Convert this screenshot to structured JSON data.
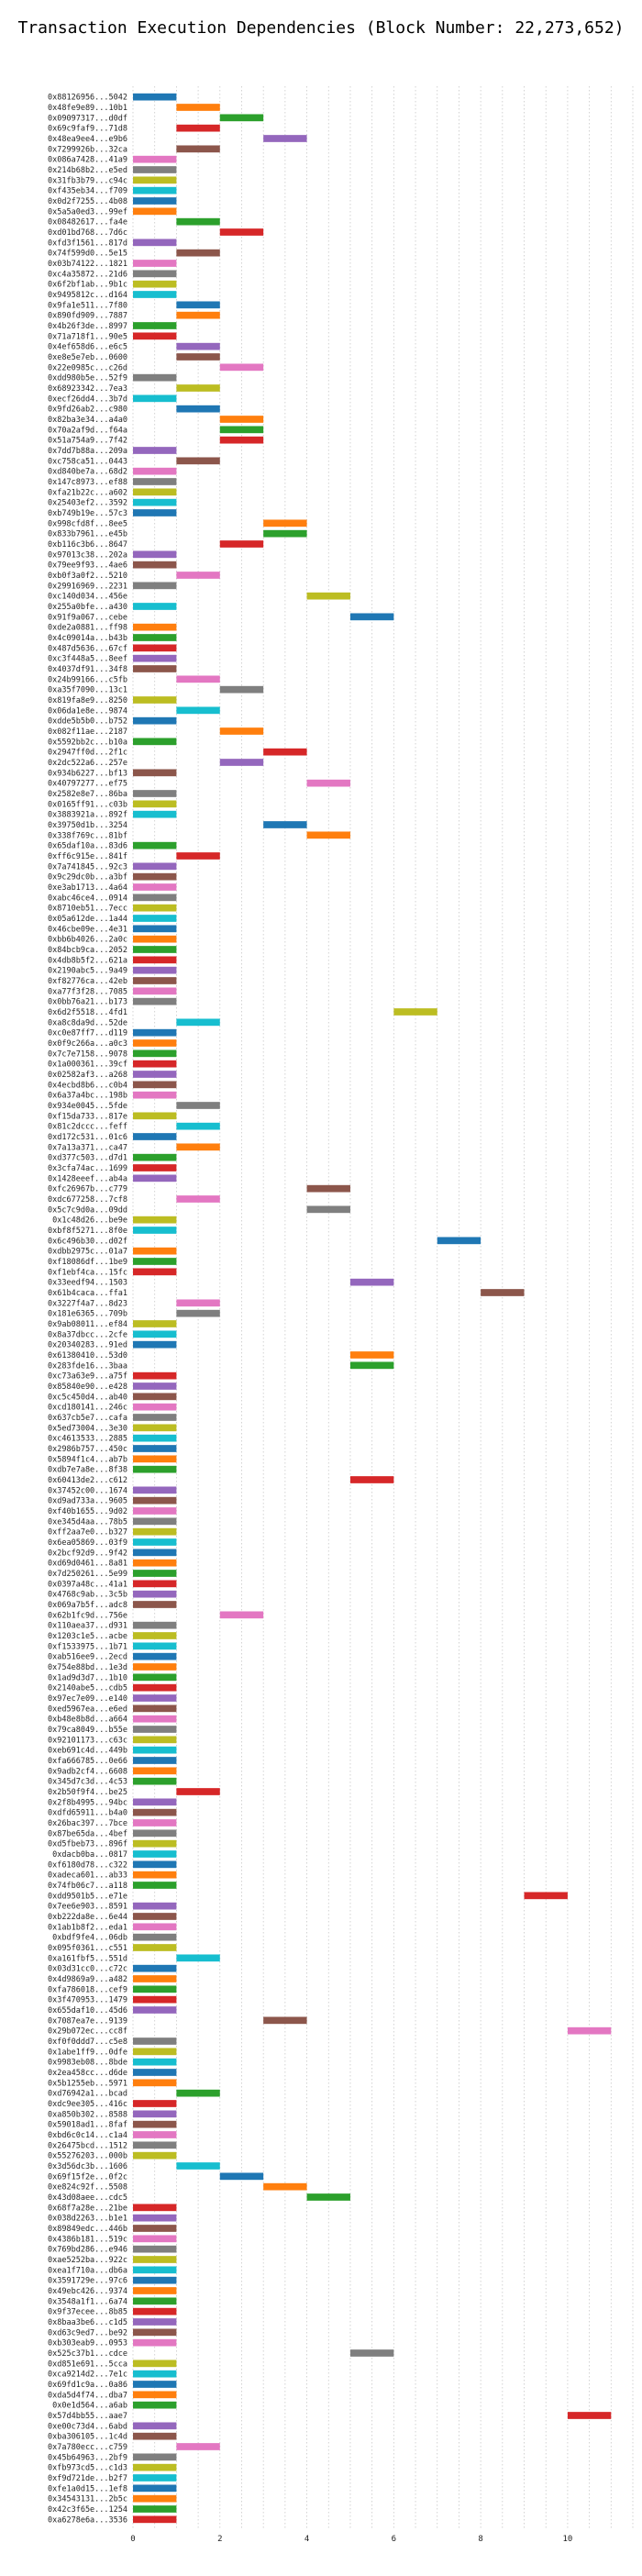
{
  "chart_data": {
    "type": "bar",
    "orientation": "horizontal-gantt",
    "title": "Transaction Execution Dependencies (Block Number: 22,273,652)",
    "xlabel": "",
    "ylabel": "",
    "xlim": [
      0,
      11.5
    ],
    "x_ticks": [
      0,
      2,
      4,
      6,
      8,
      10
    ],
    "grid": true,
    "colors": [
      "#1f77b4",
      "#ff7f0e",
      "#2ca02c",
      "#d62728",
      "#9467bd",
      "#8c564b",
      "#e377c2",
      "#7f7f7f",
      "#bcbd22",
      "#17becf"
    ],
    "rows": [
      {
        "label": "0x88126956...5042",
        "start": 0
      },
      {
        "label": "0x48fe9e89...10b1",
        "start": 1
      },
      {
        "label": "0x09097317...d0df",
        "start": 2
      },
      {
        "label": "0x69c9faf9...71d8",
        "start": 1
      },
      {
        "label": "0x48ea9ee4...e9b6",
        "start": 3
      },
      {
        "label": "0x7299926b...32ca",
        "start": 1
      },
      {
        "label": "0x086a7428...41a9",
        "start": 0
      },
      {
        "label": "0x214b68b2...e5ed",
        "start": 0
      },
      {
        "label": "0x31fb3b79...c94c",
        "start": 0
      },
      {
        "label": "0xf435eb34...f709",
        "start": 0
      },
      {
        "label": "0x0d2f7255...4b08",
        "start": 0
      },
      {
        "label": "0x5a5a0ed3...99ef",
        "start": 0
      },
      {
        "label": "0x08482617...fa4e",
        "start": 1
      },
      {
        "label": "0xd01bd768...7d6c",
        "start": 2
      },
      {
        "label": "0xfd3f1561...817d",
        "start": 0
      },
      {
        "label": "0x74f599d0...5e15",
        "start": 1
      },
      {
        "label": "0x03b74122...1821",
        "start": 0
      },
      {
        "label": "0xc4a35872...21d6",
        "start": 0
      },
      {
        "label": "0x6f2bf1ab...9b1c",
        "start": 0
      },
      {
        "label": "0x9495812c...d164",
        "start": 0
      },
      {
        "label": "0x9fa1e511...7f80",
        "start": 1
      },
      {
        "label": "0x890fd909...7887",
        "start": 1
      },
      {
        "label": "0x4b26f3de...8997",
        "start": 0
      },
      {
        "label": "0x71a718f1...90e5",
        "start": 0
      },
      {
        "label": "0x4ef658d6...e6c5",
        "start": 1
      },
      {
        "label": "0xe8e5e7eb...0600",
        "start": 1
      },
      {
        "label": "0x22e0985c...c26d",
        "start": 2
      },
      {
        "label": "0xdd980b5e...52f9",
        "start": 0
      },
      {
        "label": "0x68923342...7ea3",
        "start": 1
      },
      {
        "label": "0xecf26dd4...3b7d",
        "start": 0
      },
      {
        "label": "0x9fd26ab2...c980",
        "start": 1
      },
      {
        "label": "0x82ba3e34...a4a0",
        "start": 2
      },
      {
        "label": "0x70a2af9d...f64a",
        "start": 2
      },
      {
        "label": "0x51a754a9...7f42",
        "start": 2
      },
      {
        "label": "0x7dd7b88a...209a",
        "start": 0
      },
      {
        "label": "0xc758ca51...0443",
        "start": 1
      },
      {
        "label": "0xd840be7a...68d2",
        "start": 0
      },
      {
        "label": "0x147c8973...ef88",
        "start": 0
      },
      {
        "label": "0xfa21b22c...a602",
        "start": 0
      },
      {
        "label": "0x25403ef2...3592",
        "start": 0
      },
      {
        "label": "0xb749b19e...57c3",
        "start": 0
      },
      {
        "label": "0x998cfd8f...8ee5",
        "start": 3
      },
      {
        "label": "0x833b7961...e45b",
        "start": 3
      },
      {
        "label": "0xb116c3b6...8647",
        "start": 2
      },
      {
        "label": "0x97013c38...202a",
        "start": 0
      },
      {
        "label": "0x79ee9f93...4ae6",
        "start": 0
      },
      {
        "label": "0xb0f3a0f2...5210",
        "start": 1
      },
      {
        "label": "0x29916969...2231",
        "start": 0
      },
      {
        "label": "0xc140d034...456e",
        "start": 4
      },
      {
        "label": "0x255a0bfe...a430",
        "start": 0
      },
      {
        "label": "0x91f9a067...cebe",
        "start": 5
      },
      {
        "label": "0xde2a0881...ff98",
        "start": 0
      },
      {
        "label": "0x4c09014a...b43b",
        "start": 0
      },
      {
        "label": "0x487d5636...67cf",
        "start": 0
      },
      {
        "label": "0xc3f448a5...8eef",
        "start": 0
      },
      {
        "label": "0x4037df91...34f8",
        "start": 0
      },
      {
        "label": "0x24b99166...c5fb",
        "start": 1
      },
      {
        "label": "0xa35f7090...13c1",
        "start": 2
      },
      {
        "label": "0x819fa8e9...8250",
        "start": 0
      },
      {
        "label": "0x06da1e8e...9874",
        "start": 1
      },
      {
        "label": "0xdde5b5b0...b752",
        "start": 0
      },
      {
        "label": "0x082f11ae...2187",
        "start": 2
      },
      {
        "label": "0x5592bb2c...b10a",
        "start": 0
      },
      {
        "label": "0x2947ff0d...2f1c",
        "start": 3
      },
      {
        "label": "0x2dc522a6...257e",
        "start": 2
      },
      {
        "label": "0x934b6227...bf13",
        "start": 0
      },
      {
        "label": "0x40797277...ef75",
        "start": 4
      },
      {
        "label": "0x2582e8e7...86ba",
        "start": 0
      },
      {
        "label": "0x0165ff91...c03b",
        "start": 0
      },
      {
        "label": "0x3883921a...892f",
        "start": 0
      },
      {
        "label": "0x39750d1b...3254",
        "start": 3
      },
      {
        "label": "0x338f769c...81bf",
        "start": 4
      },
      {
        "label": "0x65daf10a...83d6",
        "start": 0
      },
      {
        "label": "0xff6c915e...841f",
        "start": 1
      },
      {
        "label": "0x7a741845...92c3",
        "start": 0
      },
      {
        "label": "0x9c29dc0b...a3bf",
        "start": 0
      },
      {
        "label": "0xe3ab1713...4a64",
        "start": 0
      },
      {
        "label": "0xabc46ce4...0914",
        "start": 0
      },
      {
        "label": "0x8710eb51...7ecc",
        "start": 0
      },
      {
        "label": "0x05a612de...1a44",
        "start": 0
      },
      {
        "label": "0x46cbe09e...4e31",
        "start": 0
      },
      {
        "label": "0xbb6b4026...2a0c",
        "start": 0
      },
      {
        "label": "0x84bcb9ca...2052",
        "start": 0
      },
      {
        "label": "0x4db8b5f2...621a",
        "start": 0
      },
      {
        "label": "0x2190abc5...9a49",
        "start": 0
      },
      {
        "label": "0xf82776ca...42eb",
        "start": 0
      },
      {
        "label": "0xa77f3f28...7085",
        "start": 0
      },
      {
        "label": "0x0bb76a21...b173",
        "start": 0
      },
      {
        "label": "0x6d2f5518...4fd1",
        "start": 6
      },
      {
        "label": "0xa8c8da9d...52de",
        "start": 1
      },
      {
        "label": "0xc0e87ff7...d119",
        "start": 0
      },
      {
        "label": "0x0f9c266a...a0c3",
        "start": 0
      },
      {
        "label": "0x7c7e7158...9078",
        "start": 0
      },
      {
        "label": "0x1a000361...39cf",
        "start": 0
      },
      {
        "label": "0x02582af3...a268",
        "start": 0
      },
      {
        "label": "0x4ecbd8b6...c0b4",
        "start": 0
      },
      {
        "label": "0x6a37a4bc...198b",
        "start": 0
      },
      {
        "label": "0x934e0045...5fde",
        "start": 1
      },
      {
        "label": "0xf15da733...817e",
        "start": 0
      },
      {
        "label": "0x81c2dccc...feff",
        "start": 1
      },
      {
        "label": "0xd172c531...01c6",
        "start": 0
      },
      {
        "label": "0x7a13a371...ca47",
        "start": 1
      },
      {
        "label": "0xd377c503...d7d1",
        "start": 0
      },
      {
        "label": "0x3cfa74ac...1699",
        "start": 0
      },
      {
        "label": "0x1428eeef...ab4a",
        "start": 0
      },
      {
        "label": "0xfc26967b...c779",
        "start": 4
      },
      {
        "label": "0xdc677258...7cf8",
        "start": 1
      },
      {
        "label": "0x5c7c9d0a...09dd",
        "start": 4
      },
      {
        "label": "0x1c48d26...be9e",
        "start": 0
      },
      {
        "label": "0xbf8f5271...8f0e",
        "start": 0
      },
      {
        "label": "0x6c496b30...d02f",
        "start": 7
      },
      {
        "label": "0xdbb2975c...01a7",
        "start": 0
      },
      {
        "label": "0xf18086df...1be9",
        "start": 0
      },
      {
        "label": "0xf1ebf4ca...15fc",
        "start": 0
      },
      {
        "label": "0x33eedf94...1503",
        "start": 5
      },
      {
        "label": "0x61b4caca...ffa1",
        "start": 8
      },
      {
        "label": "0x3227f4a7...8d23",
        "start": 1
      },
      {
        "label": "0x181e6365...709b",
        "start": 1
      },
      {
        "label": "0x9ab08011...ef84",
        "start": 0
      },
      {
        "label": "0x8a37dbcc...2cfe",
        "start": 0
      },
      {
        "label": "0x20340283...91ed",
        "start": 0
      },
      {
        "label": "0x61380410...53d0",
        "start": 5
      },
      {
        "label": "0x283fde16...3baa",
        "start": 5
      },
      {
        "label": "0xc73a63e9...a75f",
        "start": 0
      },
      {
        "label": "0x85840e90...e428",
        "start": 0
      },
      {
        "label": "0xc5c450d4...ab40",
        "start": 0
      },
      {
        "label": "0xcd180141...246c",
        "start": 0
      },
      {
        "label": "0x637cb5e7...cafa",
        "start": 0
      },
      {
        "label": "0x5ed73004...3e30",
        "start": 0
      },
      {
        "label": "0xc4613533...2885",
        "start": 0
      },
      {
        "label": "0x2986b757...450c",
        "start": 0
      },
      {
        "label": "0x5894f1c4...ab7b",
        "start": 0
      },
      {
        "label": "0xdb7e7a8e...8f38",
        "start": 0
      },
      {
        "label": "0x60413de2...c612",
        "start": 5
      },
      {
        "label": "0x37452c00...1674",
        "start": 0
      },
      {
        "label": "0xd9ad733a...9605",
        "start": 0
      },
      {
        "label": "0xf40b1655...9d02",
        "start": 0
      },
      {
        "label": "0xe345d4aa...78b5",
        "start": 0
      },
      {
        "label": "0xff2aa7e0...b327",
        "start": 0
      },
      {
        "label": "0x6ea05869...03f9",
        "start": 0
      },
      {
        "label": "0x2bcf92d9...9f42",
        "start": 0
      },
      {
        "label": "0xd69d0461...8a81",
        "start": 0
      },
      {
        "label": "0x7d250261...5e99",
        "start": 0
      },
      {
        "label": "0x0397a48c...41a1",
        "start": 0
      },
      {
        "label": "0x4768c9ab...3c5b",
        "start": 0
      },
      {
        "label": "0x069a7b5f...adc8",
        "start": 0
      },
      {
        "label": "0x62b1fc9d...756e",
        "start": 2
      },
      {
        "label": "0x110aea37...d931",
        "start": 0
      },
      {
        "label": "0x1203c1e5...acbe",
        "start": 0
      },
      {
        "label": "0xf1533975...1b71",
        "start": 0
      },
      {
        "label": "0xab516ee9...2ecd",
        "start": 0
      },
      {
        "label": "0x754e88bd...1e3d",
        "start": 0
      },
      {
        "label": "0x1ad9d3d7...1b10",
        "start": 0
      },
      {
        "label": "0x2140abe5...cdb5",
        "start": 0
      },
      {
        "label": "0x97ec7e09...e140",
        "start": 0
      },
      {
        "label": "0xed5967ea...e6ed",
        "start": 0
      },
      {
        "label": "0xb48e8b8d...a664",
        "start": 0
      },
      {
        "label": "0x79ca8049...b55e",
        "start": 0
      },
      {
        "label": "0x92101173...c63c",
        "start": 0
      },
      {
        "label": "0xeb691c4d...449b",
        "start": 0
      },
      {
        "label": "0xfa666785...0e66",
        "start": 0
      },
      {
        "label": "0x9adb2cf4...6608",
        "start": 0
      },
      {
        "label": "0x345d7c3d...4c53",
        "start": 0
      },
      {
        "label": "0x2b50f9f4...be25",
        "start": 1
      },
      {
        "label": "0x2f8b4995...94bc",
        "start": 0
      },
      {
        "label": "0xdfd65911...b4a0",
        "start": 0
      },
      {
        "label": "0x26bac397...7bce",
        "start": 0
      },
      {
        "label": "0x87be65da...4bef",
        "start": 0
      },
      {
        "label": "0xd5fbeb73...896f",
        "start": 0
      },
      {
        "label": "0xdacb0ba...0817",
        "start": 0
      },
      {
        "label": "0xf6180d78...c322",
        "start": 0
      },
      {
        "label": "0xadeca601...ab33",
        "start": 0
      },
      {
        "label": "0x74fb06c7...a118",
        "start": 0
      },
      {
        "label": "0xdd9501b5...e71e",
        "start": 9
      },
      {
        "label": "0x7ee6e903...8591",
        "start": 0
      },
      {
        "label": "0xb222da8e...6e44",
        "start": 0
      },
      {
        "label": "0x1ab1b8f2...eda1",
        "start": 0
      },
      {
        "label": "0xbdf9fe4...06db",
        "start": 0
      },
      {
        "label": "0x095f0361...c551",
        "start": 0
      },
      {
        "label": "0xa161fbf5...551d",
        "start": 1
      },
      {
        "label": "0x03d31cc0...c72c",
        "start": 0
      },
      {
        "label": "0x4d9869a9...a482",
        "start": 0
      },
      {
        "label": "0xfa786018...cef9",
        "start": 0
      },
      {
        "label": "0x3f470953...1479",
        "start": 0
      },
      {
        "label": "0x655daf10...45d6",
        "start": 0
      },
      {
        "label": "0x7087ea7e...9139",
        "start": 3
      },
      {
        "label": "0x29b072ec...cc8f",
        "start": 10
      },
      {
        "label": "0xf0f0ddd7...c5e8",
        "start": 0
      },
      {
        "label": "0x1abe1ff9...0dfe",
        "start": 0
      },
      {
        "label": "0x9983eb08...8bde",
        "start": 0
      },
      {
        "label": "0x2ea458cc...d6de",
        "start": 0
      },
      {
        "label": "0x5b1255eb...5971",
        "start": 0
      },
      {
        "label": "0xd76942a1...bcad",
        "start": 1
      },
      {
        "label": "0xdc9ee305...416c",
        "start": 0
      },
      {
        "label": "0xa850b302...8588",
        "start": 0
      },
      {
        "label": "0x59018ad1...8faf",
        "start": 0
      },
      {
        "label": "0xbd6c0c14...c1a4",
        "start": 0
      },
      {
        "label": "0x26475bcd...1512",
        "start": 0
      },
      {
        "label": "0x55276203...000b",
        "start": 0
      },
      {
        "label": "0x3d56dc3b...1606",
        "start": 1
      },
      {
        "label": "0x69f15f2e...0f2c",
        "start": 2
      },
      {
        "label": "0xe824c92f...5508",
        "start": 3
      },
      {
        "label": "0x43d08aee...cdc5",
        "start": 4
      },
      {
        "label": "0x68f7a28e...21be",
        "start": 0
      },
      {
        "label": "0x038d2263...b1e1",
        "start": 0
      },
      {
        "label": "0x89849edc...446b",
        "start": 0
      },
      {
        "label": "0x4386b181...519c",
        "start": 0
      },
      {
        "label": "0x769bd286...e946",
        "start": 0
      },
      {
        "label": "0xae5252ba...922c",
        "start": 0
      },
      {
        "label": "0xea1f710a...db6a",
        "start": 0
      },
      {
        "label": "0x3591729e...97c6",
        "start": 0
      },
      {
        "label": "0x49ebc426...9374",
        "start": 0
      },
      {
        "label": "0x3548a1f1...6a74",
        "start": 0
      },
      {
        "label": "0x9f37ecee...8b85",
        "start": 0
      },
      {
        "label": "0x8baa3be6...c1d5",
        "start": 0
      },
      {
        "label": "0xd63c9ed7...be92",
        "start": 0
      },
      {
        "label": "0xb303eab9...0953",
        "start": 0
      },
      {
        "label": "0x525c37b1...cdce",
        "start": 5
      },
      {
        "label": "0xd851e691...5cca",
        "start": 0
      },
      {
        "label": "0xca9214d2...7e1c",
        "start": 0
      },
      {
        "label": "0x69fd1c9a...0a86",
        "start": 0
      },
      {
        "label": "0xda5d4f74...dba7",
        "start": 0
      },
      {
        "label": "0x0e1d564...a6ab",
        "start": 0
      },
      {
        "label": "0x57d4bb55...aae7",
        "start": 10
      },
      {
        "label": "0xe00c73d4...6abd",
        "start": 0
      },
      {
        "label": "0xba306105...1c4d",
        "start": 0
      },
      {
        "label": "0x7a780ecc...c759",
        "start": 1
      },
      {
        "label": "0x45b64963...2bf9",
        "start": 0
      },
      {
        "label": "0xfb973cd5...c1d3",
        "start": 0
      },
      {
        "label": "0xf9d721de...b2f7",
        "start": 0
      },
      {
        "label": "0xfe1a0d15...1ef8",
        "start": 0
      },
      {
        "label": "0x34543131...2b5c",
        "start": 0
      },
      {
        "label": "0x42c3f65e...1254",
        "start": 0
      },
      {
        "label": "0xa6278e6a...3536",
        "start": 0
      }
    ]
  }
}
